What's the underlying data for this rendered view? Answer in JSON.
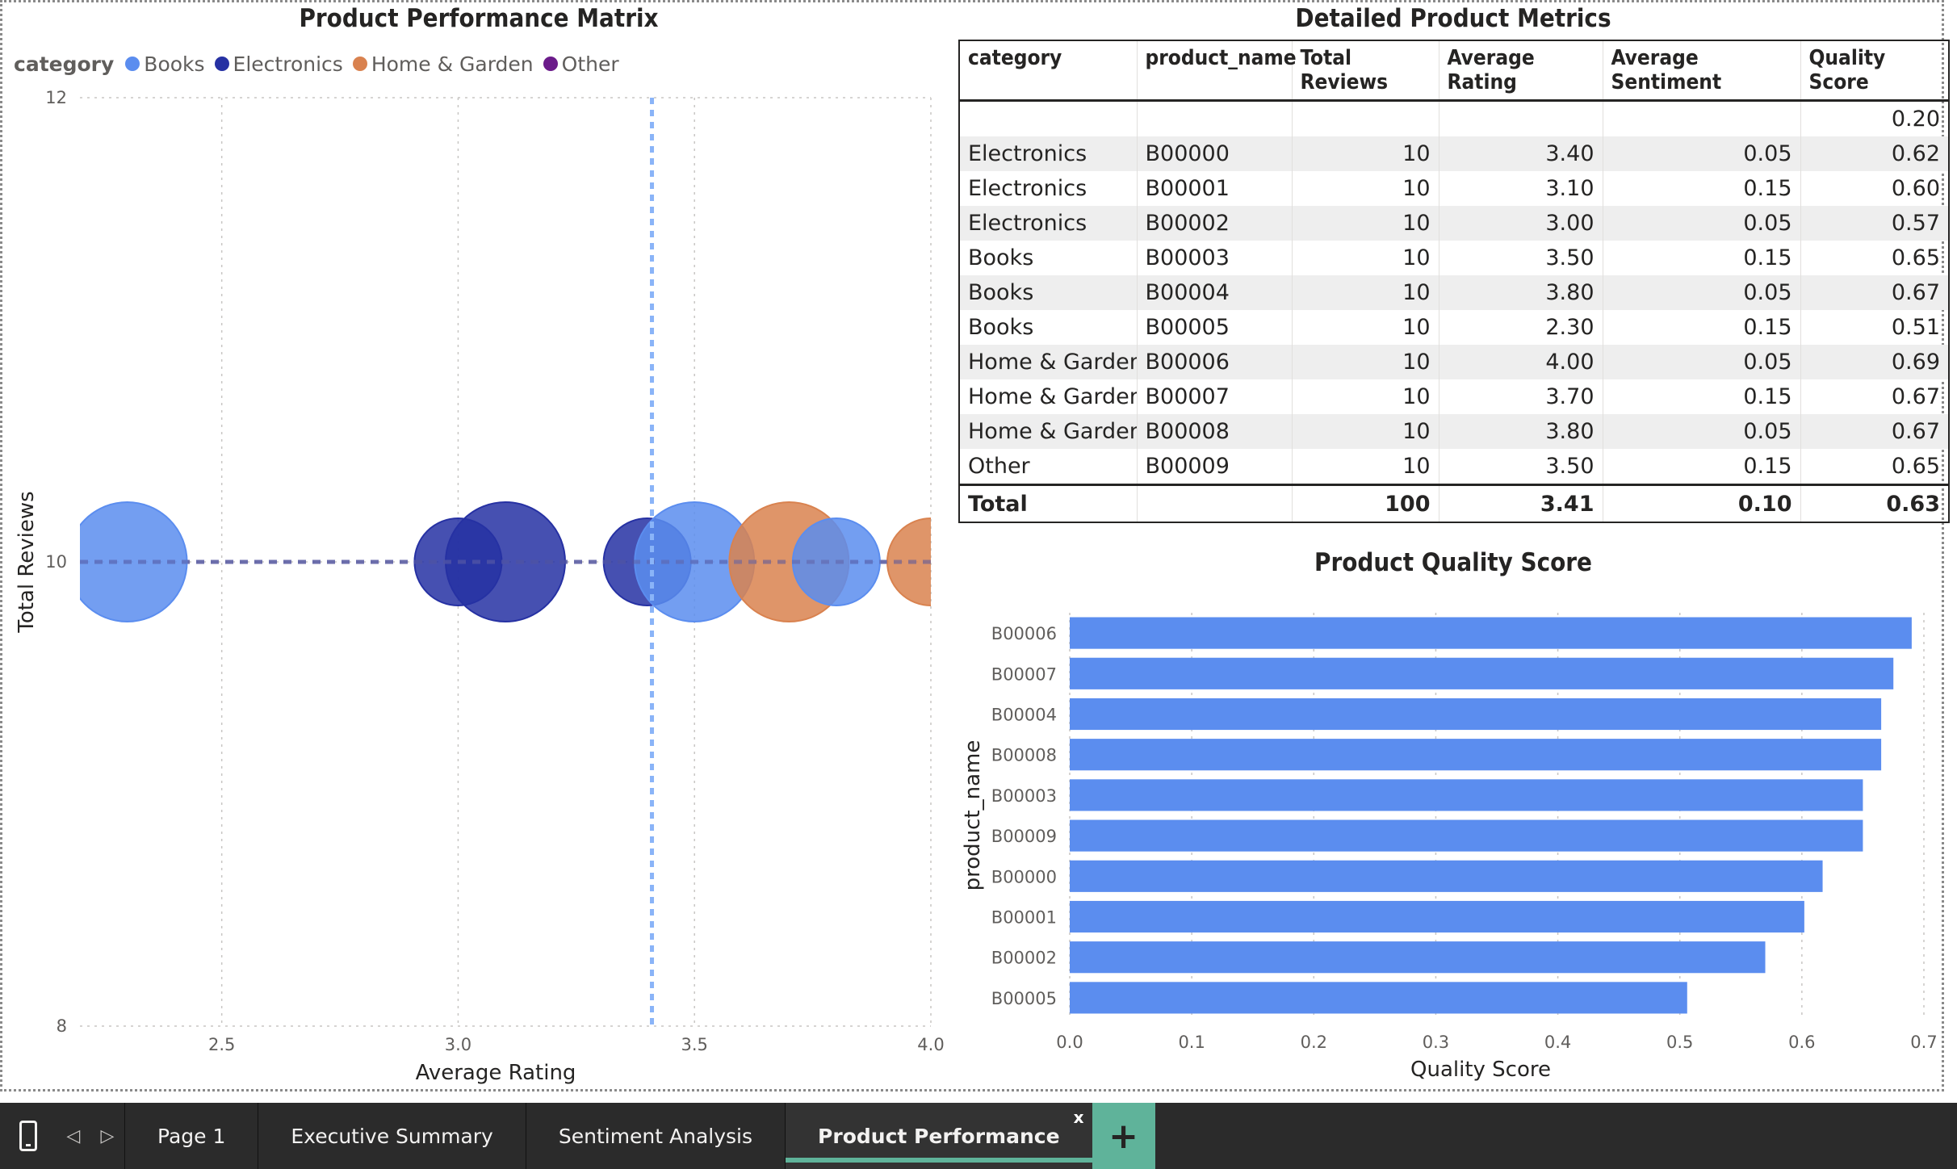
{
  "scatter": {
    "title": "Product Performance Matrix",
    "legend_title": "category",
    "legend": [
      {
        "label": "Books",
        "color": "#5b8def"
      },
      {
        "label": "Electronics",
        "color": "#2631a3"
      },
      {
        "label": "Home & Garden",
        "color": "#d9824f"
      },
      {
        "label": "Other",
        "color": "#6b1b8a"
      }
    ],
    "xlabel": "Average Rating",
    "ylabel": "Total Reviews"
  },
  "table": {
    "title": "Detailed Product Metrics",
    "columns": [
      "category",
      "product_name",
      "Total Reviews",
      "Average Rating",
      "Average Sentiment",
      "Quality Score"
    ],
    "rows": [
      [
        "",
        "",
        "",
        "",
        "",
        "0.20"
      ],
      [
        "Electronics",
        "B00000",
        "10",
        "3.40",
        "0.05",
        "0.62"
      ],
      [
        "Electronics",
        "B00001",
        "10",
        "3.10",
        "0.15",
        "0.60"
      ],
      [
        "Electronics",
        "B00002",
        "10",
        "3.00",
        "0.05",
        "0.57"
      ],
      [
        "Books",
        "B00003",
        "10",
        "3.50",
        "0.15",
        "0.65"
      ],
      [
        "Books",
        "B00004",
        "10",
        "3.80",
        "0.05",
        "0.67"
      ],
      [
        "Books",
        "B00005",
        "10",
        "2.30",
        "0.15",
        "0.51"
      ],
      [
        "Home & Garden",
        "B00006",
        "10",
        "4.00",
        "0.05",
        "0.69"
      ],
      [
        "Home & Garden",
        "B00007",
        "10",
        "3.70",
        "0.15",
        "0.67"
      ],
      [
        "Home & Garden",
        "B00008",
        "10",
        "3.80",
        "0.05",
        "0.67"
      ],
      [
        "Other",
        "B00009",
        "10",
        "3.50",
        "0.15",
        "0.65"
      ]
    ],
    "total": [
      "Total",
      "",
      "100",
      "3.41",
      "0.10",
      "0.63"
    ]
  },
  "barchart": {
    "title": "Product Quality Score",
    "xlabel": "Quality Score",
    "ylabel": "product_name"
  },
  "tabs": {
    "items": [
      "Page 1",
      "Executive Summary",
      "Sentiment Analysis",
      "Product Performance"
    ],
    "active_index": 3,
    "close_glyph": "x",
    "add_glyph": "+"
  },
  "chart_data": [
    {
      "type": "scatter",
      "title": "Product Performance Matrix",
      "xlabel": "Average Rating",
      "ylabel": "Total Reviews",
      "xlim": [
        2.2,
        4.0
      ],
      "ylim": [
        8,
        12
      ],
      "x_ticks": [
        "2.5",
        "3.0",
        "3.5",
        "4.0"
      ],
      "y_ticks": [
        "8",
        "10",
        "12"
      ],
      "legend_position": "top-left",
      "grid": true,
      "x_average_line": 3.41,
      "y_average_line": 10,
      "points": [
        {
          "x": 2.3,
          "y": 10,
          "size": 0.15,
          "category": "Books"
        },
        {
          "x": 3.0,
          "y": 10,
          "size": 0.05,
          "category": "Electronics"
        },
        {
          "x": 3.1,
          "y": 10,
          "size": 0.15,
          "category": "Electronics"
        },
        {
          "x": 3.4,
          "y": 10,
          "size": 0.05,
          "category": "Electronics"
        },
        {
          "x": 3.5,
          "y": 10,
          "size": 0.15,
          "category": "Books"
        },
        {
          "x": 3.7,
          "y": 10,
          "size": 0.15,
          "category": "Home & Garden"
        },
        {
          "x": 3.8,
          "y": 10,
          "size": 0.05,
          "category": "Books"
        },
        {
          "x": 4.0,
          "y": 10,
          "size": 0.05,
          "category": "Home & Garden"
        }
      ]
    },
    {
      "type": "bar",
      "orientation": "horizontal",
      "title": "Product Quality Score",
      "xlabel": "Quality Score",
      "ylabel": "product_name",
      "xlim": [
        0,
        0.7
      ],
      "x_ticks": [
        "0.0",
        "0.1",
        "0.2",
        "0.3",
        "0.4",
        "0.5",
        "0.6",
        "0.7"
      ],
      "color": "#5b8def",
      "categories": [
        "B00006",
        "B00007",
        "B00004",
        "B00008",
        "B00003",
        "B00009",
        "B00000",
        "B00001",
        "B00002",
        "B00005"
      ],
      "values": [
        0.69,
        0.675,
        0.665,
        0.665,
        0.65,
        0.65,
        0.617,
        0.602,
        0.57,
        0.506
      ]
    }
  ]
}
